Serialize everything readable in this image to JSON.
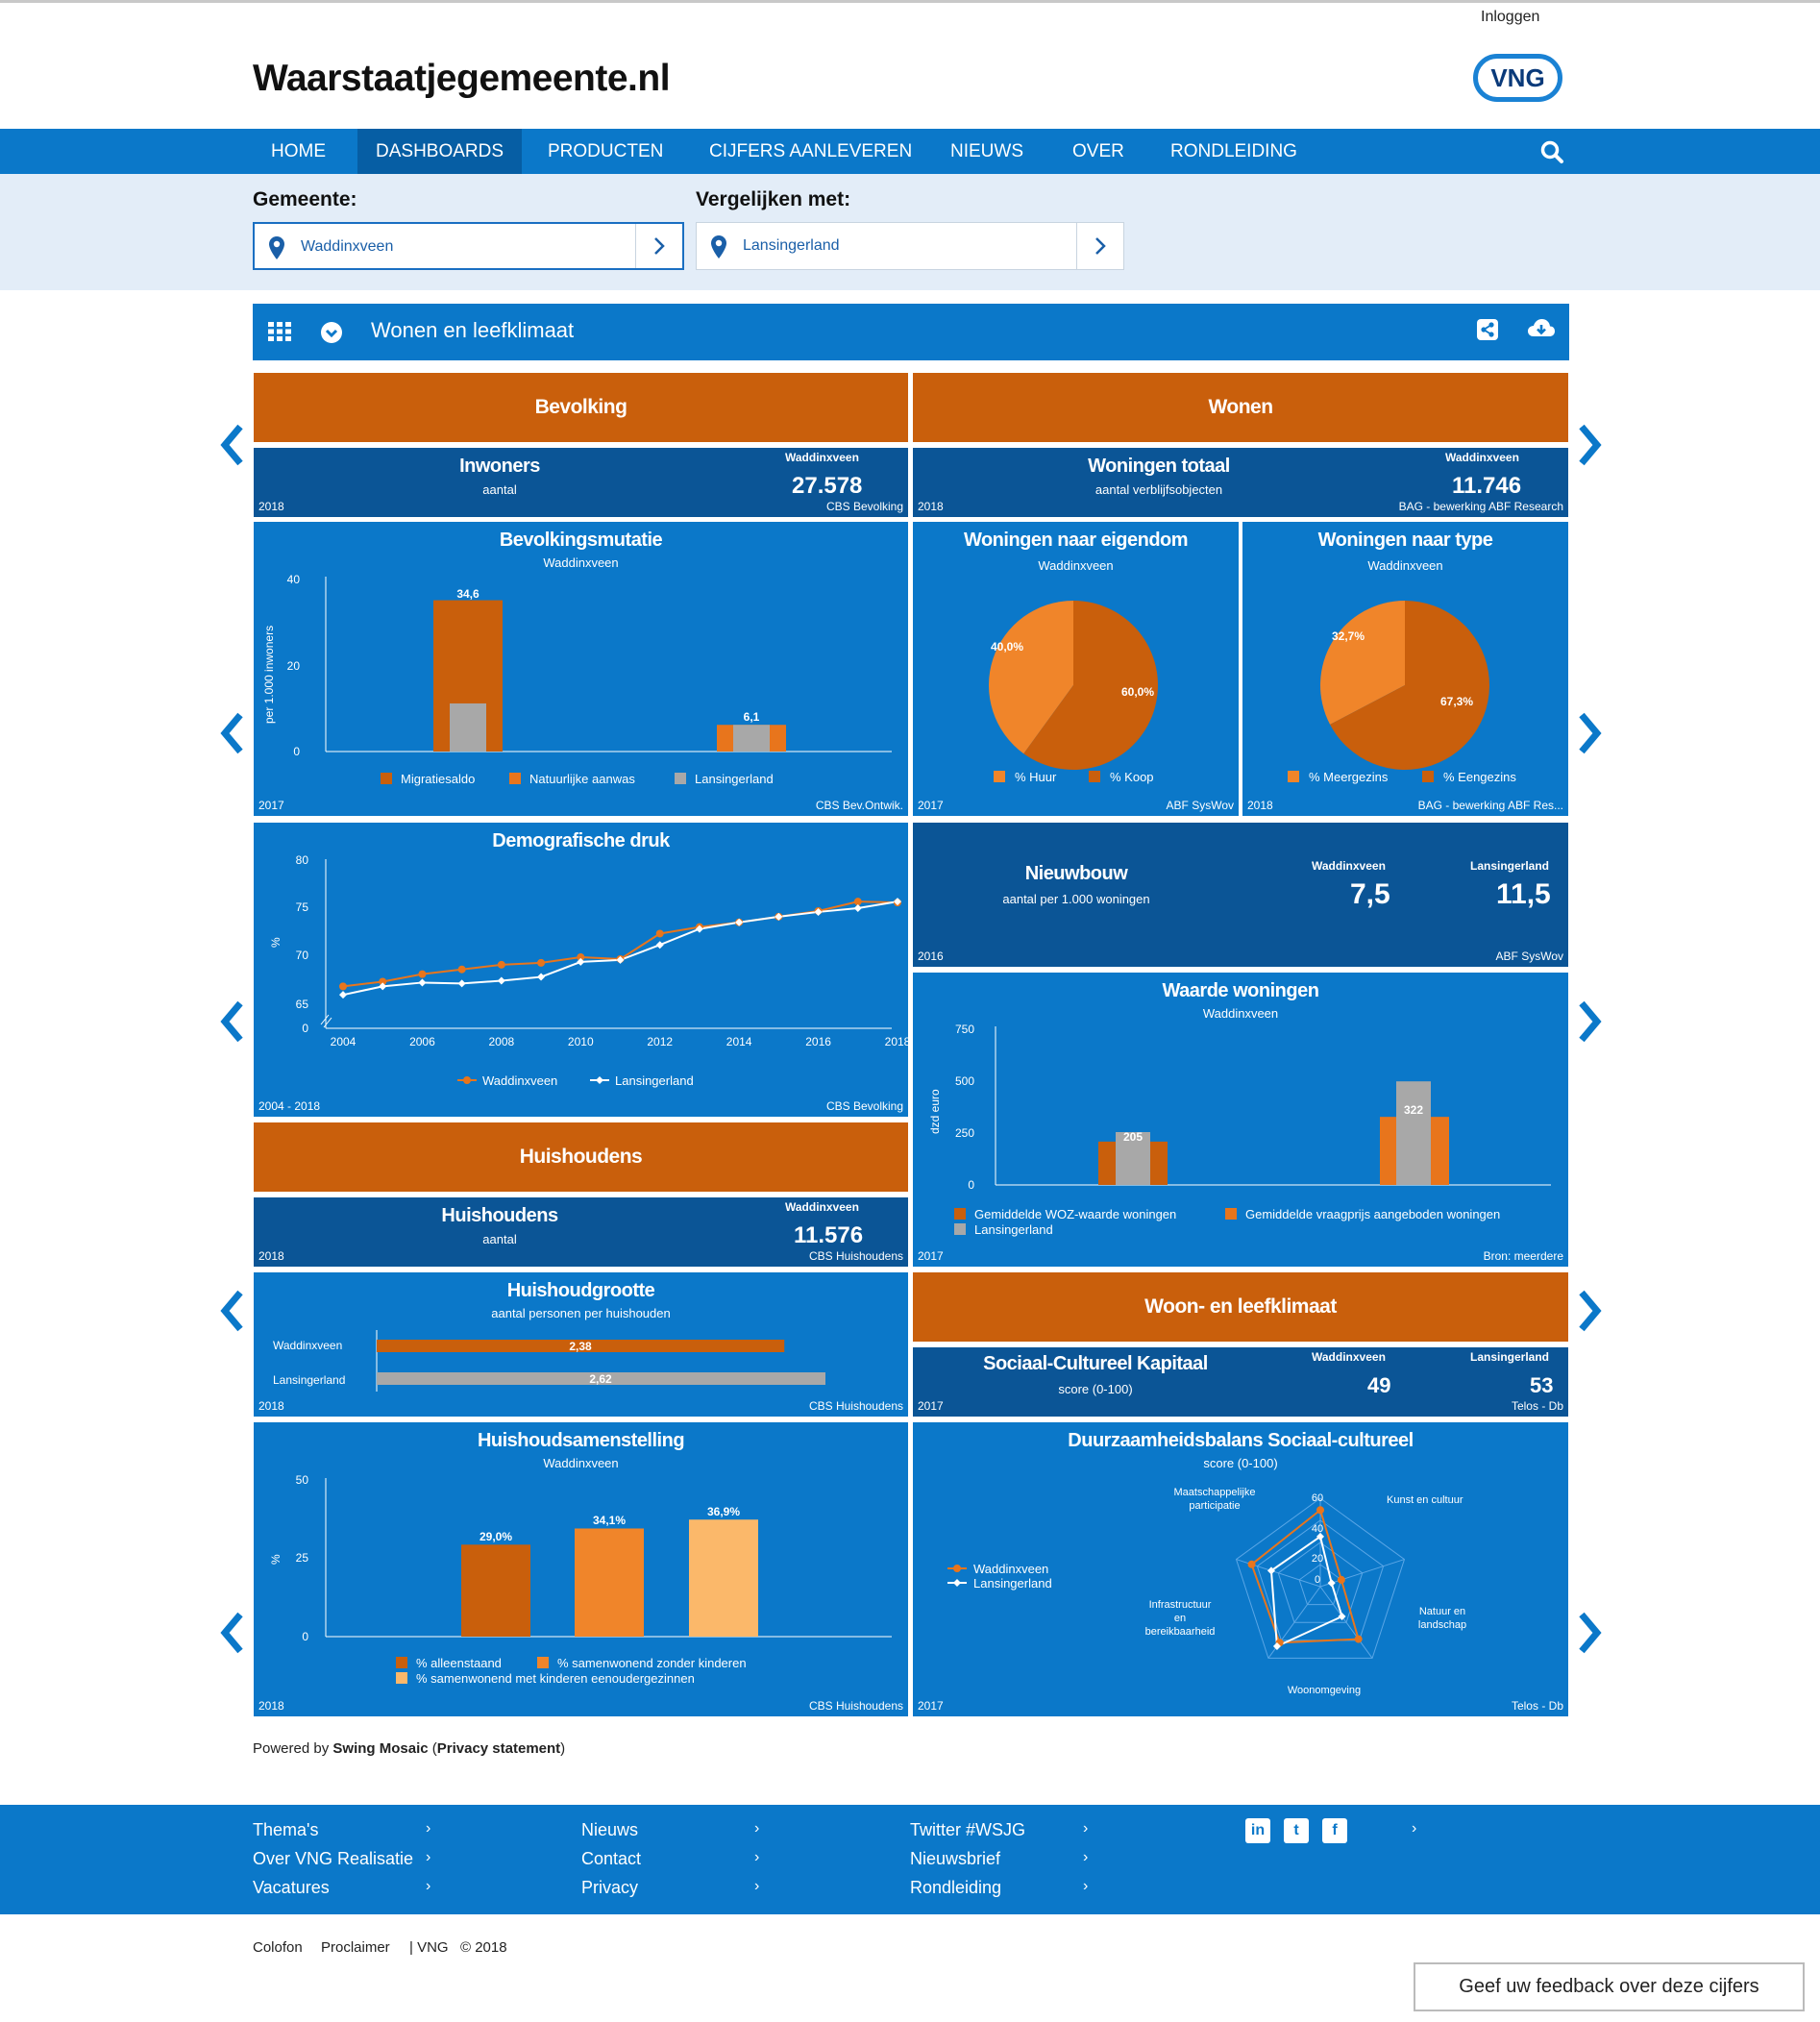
{
  "header": {
    "login": "Inloggen",
    "brand": "Waarstaatjegemeente.nl",
    "logo_text": "VNG"
  },
  "nav": {
    "items": [
      "HOME",
      "DASHBOARDS",
      "PRODUCTEN",
      "CIJFERS AANLEVEREN",
      "NIEUWS",
      "OVER",
      "RONDLEIDING"
    ],
    "active": "DASHBOARDS"
  },
  "selectors": {
    "gemeente_label": "Gemeente:",
    "gemeente_value": "Waddinxveen",
    "vergelijk_label": "Vergelijken met:",
    "vergelijk_value": "Lansingerland"
  },
  "dashboard": {
    "title": "Wonen en leefklimaat"
  },
  "sections": {
    "bevolking": "Bevolking",
    "wonen": "Wonen",
    "huishoudens": "Huishoudens",
    "woon_leef": "Woon- en leefklimaat"
  },
  "inwoners": {
    "title": "Inwoners",
    "sub": "aantal",
    "gem": "Waddinxveen",
    "value": "27.578",
    "year": "2018",
    "source": "CBS Bevolking"
  },
  "woningen_totaal": {
    "title": "Woningen totaal",
    "sub": "aantal verblijfsobjecten",
    "gem": "Waddinxveen",
    "value": "11.746",
    "year": "2018",
    "source": "BAG - bewerking ABF Research"
  },
  "bevolkingsmutatie": {
    "title": "Bevolkingsmutatie",
    "sub": "Waddinxveen",
    "ylabel": "per 1.000 inwoners",
    "yticks": [
      "40",
      "20",
      "0"
    ],
    "label1": "34,6",
    "label2": "6,1",
    "legend": [
      "Migratiesaldo",
      "Natuurlijke aanwas",
      "Lansingerland"
    ],
    "year": "2017",
    "source": "CBS Bev.Ontwik."
  },
  "eigendom": {
    "title": "Woningen naar eigendom",
    "sub": "Waddinxveen",
    "label_a": "40,0%",
    "label_b": "60,0%",
    "legend": [
      "% Huur",
      "% Koop"
    ],
    "year": "2017",
    "source": "ABF SysWov"
  },
  "type": {
    "title": "Woningen naar type",
    "sub": "Waddinxveen",
    "label_a": "32,7%",
    "label_b": "67,3%",
    "legend": [
      "% Meergezins",
      "% Eengezins"
    ],
    "year": "2018",
    "source": "BAG - bewerking ABF Res..."
  },
  "demografische_druk": {
    "title": "Demografische druk",
    "ylabel": "%",
    "yticks": [
      "80",
      "75",
      "70",
      "65",
      "0"
    ],
    "xticks": [
      "2004",
      "2006",
      "2008",
      "2010",
      "2012",
      "2014",
      "2016",
      "2018"
    ],
    "legend": [
      "Waddinxveen",
      "Lansingerland"
    ],
    "year": "2004 - 2018",
    "source": "CBS Bevolking"
  },
  "nieuwbouw": {
    "title": "Nieuwbouw",
    "sub": "aantal per 1.000 woningen",
    "gem1": "Waddinxveen",
    "val1": "7,5",
    "gem2": "Lansingerland",
    "val2": "11,5",
    "year": "2016",
    "source": "ABF SysWov"
  },
  "waarde": {
    "title": "Waarde woningen",
    "sub": "Waddinxveen",
    "ylabel": "dzd euro",
    "yticks": [
      "750",
      "500",
      "250",
      "0"
    ],
    "label1": "205",
    "label2": "322",
    "legend": [
      "Gemiddelde WOZ-waarde woningen",
      "Gemiddelde vraagprijs aangeboden woningen",
      "Lansingerland"
    ],
    "year": "2017",
    "source": "Bron: meerdere"
  },
  "huishoudens_tile": {
    "title": "Huishoudens",
    "sub": "aantal",
    "gem": "Waddinxveen",
    "value": "11.576",
    "year": "2018",
    "source": "CBS Huishoudens"
  },
  "huishoudgrootte": {
    "title": "Huishoudgrootte",
    "sub": "aantal personen per huishouden",
    "row1": "Waddinxveen",
    "val1": "2,38",
    "row2": "Lansingerland",
    "val2": "2,62",
    "year": "2018",
    "source": "CBS Huishoudens"
  },
  "sck": {
    "title": "Sociaal-Cultureel Kapitaal",
    "sub": "score (0-100)",
    "gem1": "Waddinxveen",
    "val1": "49",
    "gem2": "Lansingerland",
    "val2": "53",
    "year": "2017",
    "source": "Telos - Db"
  },
  "samenstelling": {
    "title": "Huishoudsamenstelling",
    "sub": "Waddinxveen",
    "ylabel": "%",
    "yticks": [
      "50",
      "25",
      "0"
    ],
    "labels": [
      "29,0%",
      "34,1%",
      "36,9%"
    ],
    "legend": [
      "% alleenstaand",
      "% samenwonend zonder kinderen",
      "% samenwonend met kinderen eenoudergezinnen"
    ],
    "year": "2018",
    "source": "CBS Huishoudens"
  },
  "duurzaamheid": {
    "title": "Duurzaamheidsbalans Sociaal-cultureel",
    "sub": "score (0-100)",
    "axes": [
      "Maatschappelijke participatie",
      "Kunst en cultuur",
      "Natuur en landschap",
      "Woonomgeving",
      "Infrastructuur en bereikbaarheid"
    ],
    "rticks": [
      "60",
      "40",
      "20",
      "0"
    ],
    "legend": [
      "Waddinxveen",
      "Lansingerland"
    ],
    "year": "2017",
    "source": "Telos - Db"
  },
  "powered": {
    "prefix": "Powered by ",
    "name": "Swing Mosaic",
    "open": " (",
    "privacy": "Privacy statement",
    "close": ")"
  },
  "footer": {
    "col1": [
      "Thema's",
      "Over VNG Realisatie",
      "Vacatures"
    ],
    "col2": [
      "Nieuws",
      "Contact",
      "Privacy"
    ],
    "col3": [
      "Twitter #WSJG",
      "Nieuwsbrief",
      "Rondleiding"
    ],
    "arrow": "›",
    "social": [
      "in",
      "t",
      "f"
    ]
  },
  "bottom": {
    "links": [
      "Colofon",
      "Proclaimer",
      "| VNG",
      "© 2018"
    ]
  },
  "feedback": "Geef uw feedback over deze cijfers",
  "colors": {
    "nav": "#0b78c9",
    "tile": "#0b78c9",
    "tile_dark": "#0b5596",
    "orange_header": "#c95f0c",
    "orange": "#e8751c",
    "dark_orange": "#c95f0c",
    "gray": "#a8a8a8"
  },
  "chart_data": [
    {
      "type": "bar",
      "title": "Bevolkingsmutatie",
      "ylabel": "per 1.000 inwoners",
      "ylim": [
        0,
        40
      ],
      "categories": [
        "Waddinxveen",
        "Lansingerland"
      ],
      "series": [
        {
          "name": "Migratiesaldo",
          "values": [
            34.6,
            6.1
          ]
        },
        {
          "name": "Lansingerland",
          "values": [
            11,
            6.1
          ]
        }
      ]
    },
    {
      "type": "pie",
      "title": "Woningen naar eigendom",
      "labels": [
        "% Huur",
        "% Koop"
      ],
      "values": [
        40.0,
        60.0
      ]
    },
    {
      "type": "pie",
      "title": "Woningen naar type",
      "labels": [
        "% Meergezins",
        "% Eengezins"
      ],
      "values": [
        32.7,
        67.3
      ]
    },
    {
      "type": "line",
      "title": "Demografische druk",
      "ylabel": "%",
      "ylim": [
        0,
        80
      ],
      "x": [
        2004,
        2005,
        2006,
        2007,
        2008,
        2009,
        2010,
        2011,
        2012,
        2013,
        2014,
        2015,
        2016,
        2017,
        2018
      ],
      "series": [
        {
          "name": "Waddinxveen",
          "values": [
            66.8,
            67.3,
            68.1,
            68.6,
            69.1,
            69.3,
            69.9,
            69.7,
            72.4,
            73.1,
            73.6,
            74.2,
            74.8,
            75.8,
            75.7
          ]
        },
        {
          "name": "Lansingerland",
          "values": [
            65.9,
            66.8,
            67.2,
            67.1,
            67.4,
            67.8,
            69.4,
            69.6,
            71.2,
            72.9,
            73.6,
            74.2,
            74.7,
            75.1,
            75.8
          ]
        }
      ]
    },
    {
      "type": "bar",
      "title": "Waarde woningen",
      "ylabel": "dzd euro",
      "ylim": [
        0,
        750
      ],
      "series": [
        {
          "name": "Gemiddelde WOZ-waarde woningen",
          "values": [
            205
          ]
        },
        {
          "name": "Gemiddelde vraagprijs aangeboden woningen",
          "values": [
            322
          ]
        },
        {
          "name": "Lansingerland",
          "values": [
            250,
            490
          ]
        }
      ]
    },
    {
      "type": "bar",
      "title": "Huishoudgrootte",
      "categories": [
        "Waddinxveen",
        "Lansingerland"
      ],
      "values": [
        2.38,
        2.62
      ]
    },
    {
      "type": "bar",
      "title": "Huishoudsamenstelling",
      "ylabel": "%",
      "ylim": [
        0,
        50
      ],
      "categories": [
        "% alleenstaand",
        "% samenwonend zonder kinderen",
        "% samenwonend met kinderen eenoudergezinnen"
      ],
      "values": [
        29.0,
        34.1,
        36.9
      ]
    },
    {
      "type": "radar",
      "title": "Duurzaamheidsbalans Sociaal-cultureel",
      "rlim": [
        0,
        60
      ],
      "axes": [
        "Maatschappelijke participatie",
        "Kunst en cultuur",
        "Natuur en landschap",
        "Woonomgeving",
        "Infrastructuur en bereikbaarheid"
      ],
      "series": [
        {
          "name": "Waddinxveen",
          "values": [
            52,
            15,
            44,
            47,
            49
          ]
        },
        {
          "name": "Lansingerland",
          "values": [
            34,
            8,
            25,
            50,
            35
          ]
        }
      ]
    }
  ]
}
